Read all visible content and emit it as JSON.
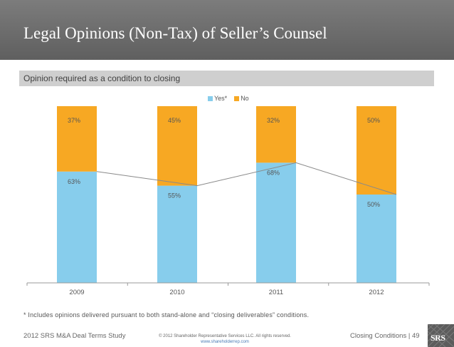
{
  "slide": {
    "title": "Legal Opinions (Non-Tax) of Seller’s Counsel",
    "subtitle": "Opinion required as a condition to closing",
    "footnote": "* Includes opinions delivered pursuant to both stand-alone and “closing deliverables” conditions."
  },
  "footer": {
    "left": "2012 SRS M&A Deal Terms Study",
    "center_line1": "© 2012 Shareholder Representative Services LLC. All rights reserved.",
    "center_line2": "www.shareholderrep.com",
    "right": "Closing Conditions   |  49",
    "logo_text": "SRS"
  },
  "colors": {
    "yes": "#87cdec",
    "no": "#f7a823",
    "title_bar": "#6e6e6e",
    "subtitle_bar": "#cfcfcf"
  },
  "chart_data": {
    "type": "bar",
    "stacked": true,
    "percent": true,
    "categories": [
      "2009",
      "2010",
      "2011",
      "2012"
    ],
    "series": [
      {
        "name": "Yes*",
        "values": [
          63,
          55,
          68,
          50
        ],
        "labels": [
          "63%",
          "55%",
          "68%",
          "50%"
        ],
        "color": "#87cdec"
      },
      {
        "name": "No",
        "values": [
          37,
          45,
          32,
          50
        ],
        "labels": [
          "37%",
          "45%",
          "32%",
          "50%"
        ],
        "color": "#f7a823"
      }
    ],
    "ylim": [
      0,
      100
    ],
    "legend": "top",
    "grid": false,
    "yes_trend_line": true
  }
}
